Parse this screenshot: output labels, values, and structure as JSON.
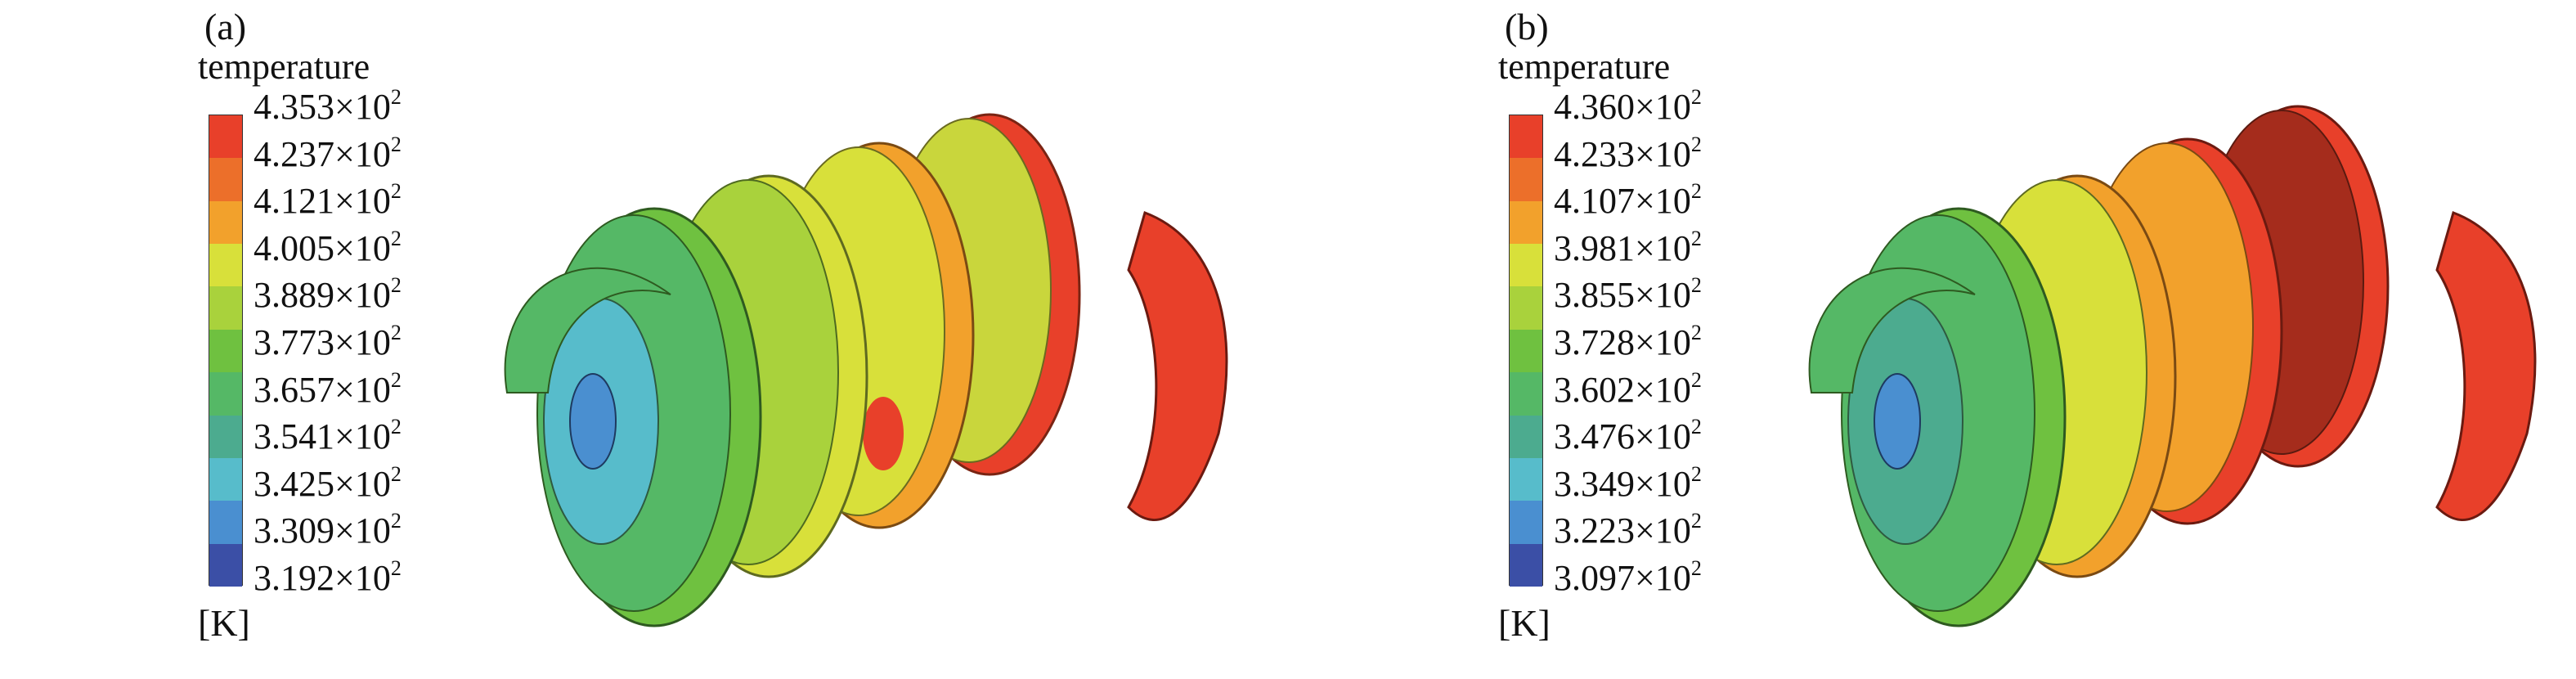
{
  "panels": [
    {
      "label": "(a)",
      "legend_title": "temperature",
      "unit": "[K]",
      "ticks": [
        "4.353",
        "4.237",
        "4.121",
        "4.005",
        "3.889",
        "3.773",
        "3.657",
        "3.541",
        "3.425",
        "3.309",
        "3.192"
      ],
      "exponent": "×10",
      "power": "2"
    },
    {
      "label": "(b)",
      "legend_title": "temperature",
      "unit": "[K]",
      "ticks": [
        "4.360",
        "4.233",
        "4.107",
        "3.981",
        "3.855",
        "3.728",
        "3.602",
        "3.476",
        "3.349",
        "3.223",
        "3.097"
      ],
      "exponent": "×10",
      "power": "2"
    }
  ],
  "colormap": [
    "#e8402a",
    "#ec6f2a",
    "#f2a12c",
    "#d8e03a",
    "#a9d23c",
    "#6fc140",
    "#55b866",
    "#4cab8f",
    "#57bccb",
    "#4a8fd0",
    "#3b4fa6"
  ]
}
